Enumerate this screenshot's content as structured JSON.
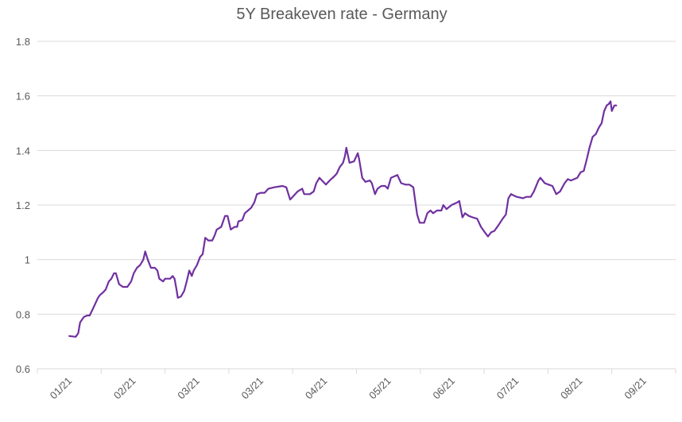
{
  "chart_data": {
    "type": "line",
    "title": "5Y Breakeven rate - Germany",
    "xlabel": "",
    "ylabel": "",
    "categories": [
      "01/21",
      "02/21",
      "03/21",
      "03/21",
      "04/21",
      "05/21",
      "06/21",
      "07/21",
      "08/21",
      "09/21"
    ],
    "xlim": [
      0,
      10
    ],
    "ylim": [
      0.6,
      1.8
    ],
    "yticks": [
      0.6,
      0.8,
      1,
      1.2,
      1.4,
      1.6,
      1.8
    ],
    "ytick_labels": [
      "0.6",
      "0.8",
      "1",
      "1.2",
      "1.4",
      "1.6",
      "1.8"
    ],
    "grid": true,
    "legend": "none",
    "series": [
      {
        "name": "5Y Breakeven rate - Germany",
        "color": "#7030a0",
        "points": [
          [
            0.5,
            0.72
          ],
          [
            0.6,
            0.717
          ],
          [
            0.64,
            0.73
          ],
          [
            0.67,
            0.77
          ],
          [
            0.73,
            0.79
          ],
          [
            0.78,
            0.795
          ],
          [
            0.82,
            0.795
          ],
          [
            0.87,
            0.82
          ],
          [
            0.91,
            0.84
          ],
          [
            0.95,
            0.86
          ],
          [
            0.98,
            0.87
          ],
          [
            1.03,
            0.88
          ],
          [
            1.07,
            0.89
          ],
          [
            1.12,
            0.92
          ],
          [
            1.16,
            0.93
          ],
          [
            1.2,
            0.95
          ],
          [
            1.23,
            0.95
          ],
          [
            1.28,
            0.91
          ],
          [
            1.34,
            0.9
          ],
          [
            1.41,
            0.9
          ],
          [
            1.47,
            0.92
          ],
          [
            1.51,
            0.95
          ],
          [
            1.56,
            0.97
          ],
          [
            1.61,
            0.98
          ],
          [
            1.66,
            1.0
          ],
          [
            1.69,
            1.03
          ],
          [
            1.73,
            1.0
          ],
          [
            1.78,
            0.97
          ],
          [
            1.84,
            0.97
          ],
          [
            1.88,
            0.96
          ],
          [
            1.91,
            0.93
          ],
          [
            1.97,
            0.92
          ],
          [
            2.0,
            0.93
          ],
          [
            2.05,
            0.93
          ],
          [
            2.08,
            0.93
          ],
          [
            2.12,
            0.94
          ],
          [
            2.15,
            0.93
          ],
          [
            2.18,
            0.89
          ],
          [
            2.2,
            0.86
          ],
          [
            2.25,
            0.865
          ],
          [
            2.3,
            0.885
          ],
          [
            2.34,
            0.92
          ],
          [
            2.38,
            0.96
          ],
          [
            2.42,
            0.94
          ],
          [
            2.45,
            0.96
          ],
          [
            2.5,
            0.98
          ],
          [
            2.55,
            1.01
          ],
          [
            2.59,
            1.02
          ],
          [
            2.63,
            1.08
          ],
          [
            2.68,
            1.07
          ],
          [
            2.74,
            1.07
          ],
          [
            2.78,
            1.09
          ],
          [
            2.81,
            1.11
          ],
          [
            2.88,
            1.12
          ],
          [
            2.94,
            1.16
          ],
          [
            2.98,
            1.16
          ],
          [
            3.03,
            1.11
          ],
          [
            3.09,
            1.12
          ],
          [
            3.13,
            1.12
          ],
          [
            3.15,
            1.14
          ],
          [
            3.21,
            1.145
          ],
          [
            3.25,
            1.17
          ],
          [
            3.3,
            1.18
          ],
          [
            3.35,
            1.19
          ],
          [
            3.4,
            1.21
          ],
          [
            3.44,
            1.24
          ],
          [
            3.5,
            1.245
          ],
          [
            3.56,
            1.245
          ],
          [
            3.62,
            1.26
          ],
          [
            3.71,
            1.265
          ],
          [
            3.84,
            1.27
          ],
          [
            3.9,
            1.265
          ],
          [
            3.96,
            1.22
          ],
          [
            4.02,
            1.235
          ],
          [
            4.08,
            1.25
          ],
          [
            4.15,
            1.26
          ],
          [
            4.18,
            1.24
          ],
          [
            4.27,
            1.24
          ],
          [
            4.33,
            1.25
          ],
          [
            4.37,
            1.28
          ],
          [
            4.42,
            1.3
          ],
          [
            4.46,
            1.29
          ],
          [
            4.52,
            1.275
          ],
          [
            4.58,
            1.29
          ],
          [
            4.65,
            1.305
          ],
          [
            4.69,
            1.315
          ],
          [
            4.74,
            1.34
          ],
          [
            4.79,
            1.355
          ],
          [
            4.82,
            1.38
          ],
          [
            4.84,
            1.41
          ],
          [
            4.89,
            1.355
          ],
          [
            4.96,
            1.36
          ],
          [
            5.02,
            1.39
          ],
          [
            5.04,
            1.37
          ],
          [
            5.09,
            1.3
          ],
          [
            5.14,
            1.285
          ],
          [
            5.21,
            1.29
          ],
          [
            5.24,
            1.28
          ],
          [
            5.29,
            1.24
          ],
          [
            5.33,
            1.26
          ],
          [
            5.39,
            1.27
          ],
          [
            5.45,
            1.27
          ],
          [
            5.49,
            1.26
          ],
          [
            5.54,
            1.3
          ],
          [
            5.59,
            1.305
          ],
          [
            5.64,
            1.31
          ],
          [
            5.7,
            1.28
          ],
          [
            5.77,
            1.275
          ],
          [
            5.83,
            1.275
          ],
          [
            5.89,
            1.265
          ],
          [
            5.95,
            1.165
          ],
          [
            5.99,
            1.135
          ],
          [
            6.06,
            1.135
          ],
          [
            6.11,
            1.17
          ],
          [
            6.16,
            1.18
          ],
          [
            6.2,
            1.17
          ],
          [
            6.26,
            1.18
          ],
          [
            6.33,
            1.18
          ],
          [
            6.36,
            1.2
          ],
          [
            6.41,
            1.185
          ],
          [
            6.49,
            1.2
          ],
          [
            6.58,
            1.21
          ],
          [
            6.61,
            1.215
          ],
          [
            6.66,
            1.155
          ],
          [
            6.7,
            1.17
          ],
          [
            6.76,
            1.16
          ],
          [
            6.82,
            1.155
          ],
          [
            6.89,
            1.15
          ],
          [
            6.95,
            1.12
          ],
          [
            7.01,
            1.1
          ],
          [
            7.06,
            1.085
          ],
          [
            7.11,
            1.1
          ],
          [
            7.16,
            1.105
          ],
          [
            7.22,
            1.125
          ],
          [
            7.29,
            1.15
          ],
          [
            7.34,
            1.165
          ],
          [
            7.38,
            1.225
          ],
          [
            7.42,
            1.24
          ],
          [
            7.51,
            1.23
          ],
          [
            7.61,
            1.225
          ],
          [
            7.66,
            1.23
          ],
          [
            7.73,
            1.23
          ],
          [
            7.78,
            1.25
          ],
          [
            7.85,
            1.29
          ],
          [
            7.88,
            1.3
          ],
          [
            7.95,
            1.28
          ],
          [
            8.01,
            1.275
          ],
          [
            8.07,
            1.27
          ],
          [
            8.13,
            1.24
          ],
          [
            8.19,
            1.25
          ],
          [
            8.26,
            1.28
          ],
          [
            8.31,
            1.295
          ],
          [
            8.36,
            1.29
          ],
          [
            8.41,
            1.295
          ],
          [
            8.46,
            1.3
          ],
          [
            8.51,
            1.32
          ],
          [
            8.56,
            1.325
          ],
          [
            8.61,
            1.37
          ],
          [
            8.65,
            1.41
          ],
          [
            8.7,
            1.45
          ],
          [
            8.75,
            1.46
          ],
          [
            8.8,
            1.485
          ],
          [
            8.84,
            1.5
          ],
          [
            8.88,
            1.545
          ],
          [
            8.92,
            1.565
          ],
          [
            8.95,
            1.57
          ],
          [
            8.98,
            1.58
          ],
          [
            9.0,
            1.545
          ],
          [
            9.04,
            1.565
          ],
          [
            9.07,
            1.565
          ]
        ]
      }
    ]
  }
}
